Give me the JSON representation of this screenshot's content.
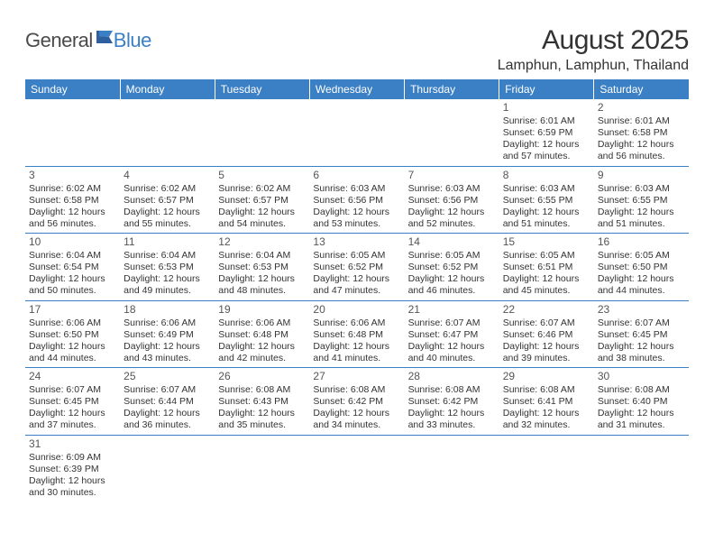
{
  "logo": {
    "general": "General",
    "blue": "Blue"
  },
  "title": "August 2025",
  "location": "Lamphun, Lamphun, Thailand",
  "colors": {
    "header_bg": "#3b7fc4",
    "header_text": "#ffffff",
    "text": "#333333",
    "border": "#3b7fc4",
    "logo_gray": "#4a4a4a",
    "logo_blue": "#3b7fc4"
  },
  "typography": {
    "title_fontsize": 30,
    "location_fontsize": 16,
    "dayheader_fontsize": 12,
    "cell_fontsize": 10.5
  },
  "day_headers": [
    "Sunday",
    "Monday",
    "Tuesday",
    "Wednesday",
    "Thursday",
    "Friday",
    "Saturday"
  ],
  "weeks": [
    [
      null,
      null,
      null,
      null,
      null,
      {
        "n": "1",
        "sr": "6:01 AM",
        "ss": "6:59 PM",
        "dl": "12 hours and 57 minutes."
      },
      {
        "n": "2",
        "sr": "6:01 AM",
        "ss": "6:58 PM",
        "dl": "12 hours and 56 minutes."
      }
    ],
    [
      {
        "n": "3",
        "sr": "6:02 AM",
        "ss": "6:58 PM",
        "dl": "12 hours and 56 minutes."
      },
      {
        "n": "4",
        "sr": "6:02 AM",
        "ss": "6:57 PM",
        "dl": "12 hours and 55 minutes."
      },
      {
        "n": "5",
        "sr": "6:02 AM",
        "ss": "6:57 PM",
        "dl": "12 hours and 54 minutes."
      },
      {
        "n": "6",
        "sr": "6:03 AM",
        "ss": "6:56 PM",
        "dl": "12 hours and 53 minutes."
      },
      {
        "n": "7",
        "sr": "6:03 AM",
        "ss": "6:56 PM",
        "dl": "12 hours and 52 minutes."
      },
      {
        "n": "8",
        "sr": "6:03 AM",
        "ss": "6:55 PM",
        "dl": "12 hours and 51 minutes."
      },
      {
        "n": "9",
        "sr": "6:03 AM",
        "ss": "6:55 PM",
        "dl": "12 hours and 51 minutes."
      }
    ],
    [
      {
        "n": "10",
        "sr": "6:04 AM",
        "ss": "6:54 PM",
        "dl": "12 hours and 50 minutes."
      },
      {
        "n": "11",
        "sr": "6:04 AM",
        "ss": "6:53 PM",
        "dl": "12 hours and 49 minutes."
      },
      {
        "n": "12",
        "sr": "6:04 AM",
        "ss": "6:53 PM",
        "dl": "12 hours and 48 minutes."
      },
      {
        "n": "13",
        "sr": "6:05 AM",
        "ss": "6:52 PM",
        "dl": "12 hours and 47 minutes."
      },
      {
        "n": "14",
        "sr": "6:05 AM",
        "ss": "6:52 PM",
        "dl": "12 hours and 46 minutes."
      },
      {
        "n": "15",
        "sr": "6:05 AM",
        "ss": "6:51 PM",
        "dl": "12 hours and 45 minutes."
      },
      {
        "n": "16",
        "sr": "6:05 AM",
        "ss": "6:50 PM",
        "dl": "12 hours and 44 minutes."
      }
    ],
    [
      {
        "n": "17",
        "sr": "6:06 AM",
        "ss": "6:50 PM",
        "dl": "12 hours and 44 minutes."
      },
      {
        "n": "18",
        "sr": "6:06 AM",
        "ss": "6:49 PM",
        "dl": "12 hours and 43 minutes."
      },
      {
        "n": "19",
        "sr": "6:06 AM",
        "ss": "6:48 PM",
        "dl": "12 hours and 42 minutes."
      },
      {
        "n": "20",
        "sr": "6:06 AM",
        "ss": "6:48 PM",
        "dl": "12 hours and 41 minutes."
      },
      {
        "n": "21",
        "sr": "6:07 AM",
        "ss": "6:47 PM",
        "dl": "12 hours and 40 minutes."
      },
      {
        "n": "22",
        "sr": "6:07 AM",
        "ss": "6:46 PM",
        "dl": "12 hours and 39 minutes."
      },
      {
        "n": "23",
        "sr": "6:07 AM",
        "ss": "6:45 PM",
        "dl": "12 hours and 38 minutes."
      }
    ],
    [
      {
        "n": "24",
        "sr": "6:07 AM",
        "ss": "6:45 PM",
        "dl": "12 hours and 37 minutes."
      },
      {
        "n": "25",
        "sr": "6:07 AM",
        "ss": "6:44 PM",
        "dl": "12 hours and 36 minutes."
      },
      {
        "n": "26",
        "sr": "6:08 AM",
        "ss": "6:43 PM",
        "dl": "12 hours and 35 minutes."
      },
      {
        "n": "27",
        "sr": "6:08 AM",
        "ss": "6:42 PM",
        "dl": "12 hours and 34 minutes."
      },
      {
        "n": "28",
        "sr": "6:08 AM",
        "ss": "6:42 PM",
        "dl": "12 hours and 33 minutes."
      },
      {
        "n": "29",
        "sr": "6:08 AM",
        "ss": "6:41 PM",
        "dl": "12 hours and 32 minutes."
      },
      {
        "n": "30",
        "sr": "6:08 AM",
        "ss": "6:40 PM",
        "dl": "12 hours and 31 minutes."
      }
    ],
    [
      {
        "n": "31",
        "sr": "6:09 AM",
        "ss": "6:39 PM",
        "dl": "12 hours and 30 minutes."
      },
      null,
      null,
      null,
      null,
      null,
      null
    ]
  ],
  "labels": {
    "sunrise": "Sunrise:",
    "sunset": "Sunset:",
    "daylight": "Daylight:"
  }
}
